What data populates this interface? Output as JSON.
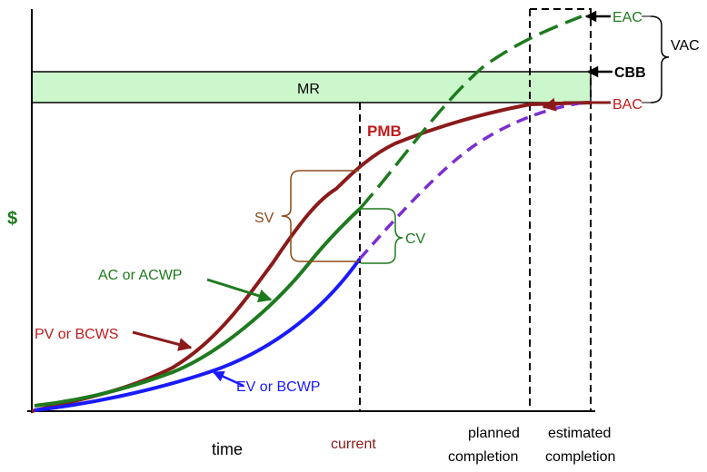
{
  "colors": {
    "pv": "#8b1a1a",
    "ac": "#1e7a1e",
    "ev": "#1a1aff",
    "forecast": "#7b2fd0",
    "axis": "#000000",
    "mr_fill": "#ccf7cc",
    "dollar": "#1e7a1e",
    "pmb": "#c01a1a",
    "current": "#8b1a1a",
    "sv_brace": "#8b4a1a",
    "cv_brace": "#1e7a1e"
  },
  "labels": {
    "y_axis": "$",
    "x_axis": "time",
    "mr": "MR",
    "pmb": "PMB",
    "sv": "SV",
    "cv": "CV",
    "ac_acwp": "AC or ACWP",
    "pv_bcws": "PV or BCWS",
    "ev_bcwp": "EV or BCWP",
    "eac": "EAC",
    "cbb": "CBB",
    "bac": "BAC",
    "vac": "VAC",
    "current": "current",
    "planned_completion": [
      "planned",
      "completion"
    ],
    "estimated_completion": [
      "estimated",
      "completion"
    ]
  }
}
